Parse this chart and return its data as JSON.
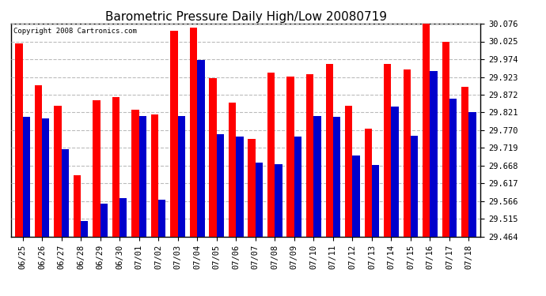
{
  "title": "Barometric Pressure Daily High/Low 20080719",
  "copyright": "Copyright 2008 Cartronics.com",
  "categories": [
    "06/25",
    "06/26",
    "06/27",
    "06/28",
    "06/29",
    "06/30",
    "07/01",
    "07/02",
    "07/03",
    "07/04",
    "07/05",
    "07/06",
    "07/07",
    "07/08",
    "07/09",
    "07/10",
    "07/11",
    "07/12",
    "07/13",
    "07/14",
    "07/15",
    "07/16",
    "07/17",
    "07/18"
  ],
  "highs": [
    30.02,
    29.9,
    29.84,
    29.64,
    29.855,
    29.865,
    29.83,
    29.815,
    30.055,
    30.065,
    29.92,
    29.85,
    29.745,
    29.935,
    29.925,
    29.93,
    29.96,
    29.84,
    29.775,
    29.96,
    29.945,
    30.076,
    30.025,
    29.895
  ],
  "lows": [
    29.808,
    29.805,
    29.715,
    29.51,
    29.56,
    29.575,
    29.81,
    29.57,
    29.81,
    29.972,
    29.758,
    29.752,
    29.678,
    29.672,
    29.752,
    29.81,
    29.808,
    29.698,
    29.67,
    29.838,
    29.755,
    29.94,
    29.86,
    29.822
  ],
  "bar_color_high": "#ff0000",
  "bar_color_low": "#0000cc",
  "background_color": "#ffffff",
  "grid_color": "#bbbbbb",
  "ylim_min": 29.464,
  "ylim_max": 30.076,
  "yticks": [
    29.464,
    29.515,
    29.566,
    29.617,
    29.668,
    29.719,
    29.77,
    29.821,
    29.872,
    29.923,
    29.974,
    30.025,
    30.076
  ],
  "title_fontsize": 11,
  "tick_fontsize": 7.5,
  "copyright_fontsize": 6.5,
  "bar_width": 0.38
}
